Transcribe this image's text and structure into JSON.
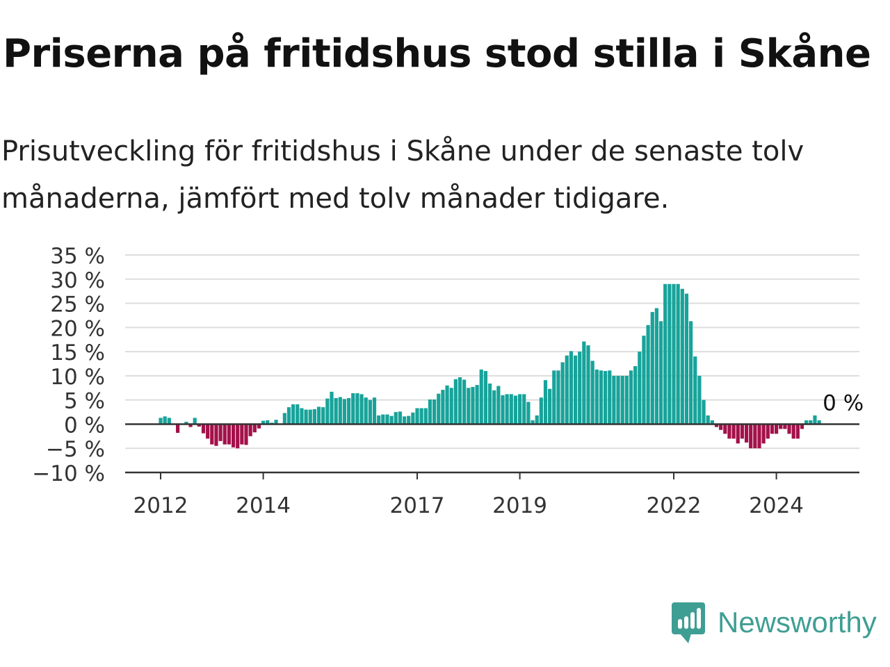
{
  "header": {
    "title": "Priserna på fritidshus stod stilla i Skåne",
    "subtitle": "Prisutveckling för fritidshus i Skåne under de senaste tolv månaderna, jämfört med tolv månader tidigare."
  },
  "brand": {
    "name": "Newsworthy",
    "icon": "newsworthy-logo-icon",
    "color": "#3f9e94"
  },
  "colors": {
    "positive": "#17a39a",
    "negative": "#a3114a",
    "grid": "#dddddd",
    "baseline": "#333333",
    "text": "#333333"
  },
  "chart_data": {
    "type": "bar",
    "y_unit": "%",
    "ylim": [
      -10,
      35
    ],
    "y_ticks": [
      {
        "value": 35,
        "label": "35 %"
      },
      {
        "value": 30,
        "label": "30 %"
      },
      {
        "value": 25,
        "label": "25 %"
      },
      {
        "value": 20,
        "label": "20 %"
      },
      {
        "value": 15,
        "label": "15 %"
      },
      {
        "value": 10,
        "label": "10 %"
      },
      {
        "value": 5,
        "label": "5 %"
      },
      {
        "value": 0,
        "label": "0 %"
      },
      {
        "value": -5,
        "label": "−5 %"
      },
      {
        "value": -10,
        "label": "−10 %"
      }
    ],
    "x_ticks": [
      {
        "label": "2012",
        "date": "2012-01"
      },
      {
        "label": "2014",
        "date": "2014-01"
      },
      {
        "label": "2017",
        "date": "2017-01"
      },
      {
        "label": "2019",
        "date": "2019-01"
      },
      {
        "label": "2022",
        "date": "2022-01"
      },
      {
        "label": "2024",
        "date": "2024-01"
      }
    ],
    "grid": true,
    "start_month": "2012-01",
    "values": [
      1.3,
      1.6,
      1.3,
      0,
      -1.8,
      0,
      0.5,
      -0.6,
      1.3,
      -0.5,
      -1.9,
      -3.0,
      -4.2,
      -4.5,
      -3.5,
      -4.2,
      -4.2,
      -4.8,
      -5.0,
      -4.2,
      -4.3,
      -2.5,
      -1.7,
      -0.9,
      0.7,
      0.8,
      0.3,
      0.9,
      0,
      2.3,
      3.5,
      4.1,
      4.1,
      3.3,
      3.0,
      3.0,
      3.1,
      3.6,
      3.5,
      5.3,
      6.7,
      5.4,
      5.6,
      5.2,
      5.4,
      6.4,
      6.4,
      6.2,
      5.5,
      5.0,
      5.5,
      1.8,
      2.0,
      2.0,
      1.7,
      2.5,
      2.6,
      1.6,
      1.7,
      2.4,
      3.3,
      3.3,
      3.3,
      5.1,
      5.1,
      6.3,
      7.1,
      8.0,
      7.5,
      9.3,
      9.7,
      9.2,
      7.5,
      7.7,
      8.1,
      11.3,
      11.0,
      8.4,
      7.0,
      7.9,
      6.0,
      6.2,
      6.2,
      5.9,
      6.2,
      6.2,
      4.6,
      0.8,
      1.8,
      5.5,
      9.1,
      7.3,
      11.1,
      11.1,
      12.8,
      14.2,
      15.1,
      14.2,
      15.0,
      17.1,
      16.3,
      13.1,
      11.3,
      11.1,
      11.0,
      11.1,
      10.0,
      10.0,
      10.0,
      10.0,
      11.1,
      12.0,
      15.0,
      18.3,
      20.5,
      23.2,
      24.0,
      21.3,
      29.0,
      29.0,
      29.0,
      29.0,
      28.0,
      27.0,
      21.3,
      14.0,
      10.0,
      5.0,
      1.8,
      0.8,
      -0.6,
      -1.2,
      -2.0,
      -3.0,
      -3.0,
      -4.0,
      -3.0,
      -3.8,
      -5.0,
      -5.0,
      -5.0,
      -4.0,
      -3.0,
      -2.0,
      -2.0,
      -1.0,
      -1.0,
      -2.0,
      -3.0,
      -3.0,
      -1.0,
      0.8,
      0.8,
      1.8,
      0.8
    ],
    "annotations": [
      {
        "label": "0 %",
        "date": "2025-03",
        "value": 0
      }
    ]
  }
}
